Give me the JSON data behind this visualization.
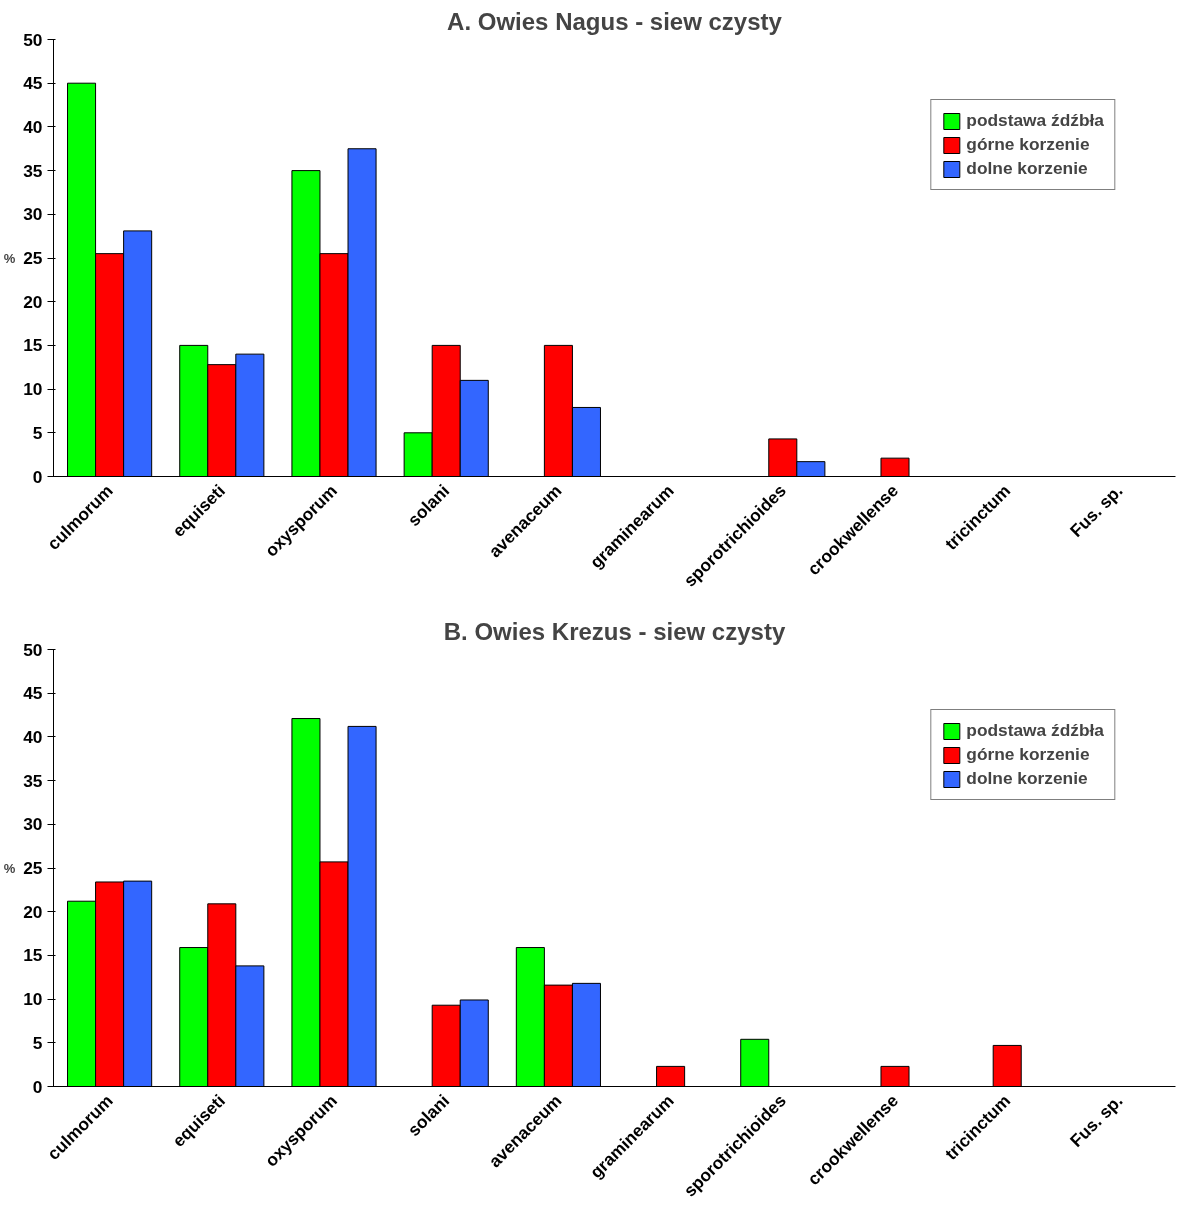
{
  "chart_data": [
    {
      "type": "bar",
      "title": "A. Owies Nagus - siew czysty",
      "ylabel": "%",
      "categories": [
        "culmorum",
        "equiseti",
        "oxysporum",
        "solani",
        "avenaceum",
        "graminearum",
        "sporotrichioides",
        "crookwellense",
        "tricinctum",
        "Fus. sp."
      ],
      "ylim": [
        0,
        50
      ],
      "yticks": [
        0,
        5,
        10,
        15,
        20,
        25,
        30,
        35,
        40,
        45,
        50
      ],
      "grid": false,
      "legend": "top right",
      "series": [
        {
          "name": "podstawa źdźbła",
          "color": "#00ff00",
          "values": [
            45,
            15,
            35,
            5,
            null,
            null,
            null,
            null,
            null,
            null
          ]
        },
        {
          "name": "górne korzenie",
          "color": "#ff0000",
          "values": [
            25.5,
            12.8,
            25.5,
            15,
            15,
            null,
            4.3,
            2.1,
            null,
            null
          ]
        },
        {
          "name": "dolne korzenie",
          "color": "#3366ff",
          "values": [
            28.1,
            14,
            37.5,
            11,
            7.9,
            null,
            1.7,
            null,
            null,
            null
          ]
        }
      ]
    },
    {
      "type": "bar",
      "title": "B. Owies Krezus - siew czysty",
      "ylabel": "%",
      "categories": [
        "culmorum",
        "equiseti",
        "oxysporum",
        "solani",
        "avenaceum",
        "graminearum",
        "sporotrichioides",
        "crookwellense",
        "tricinctum",
        "Fus. sp."
      ],
      "ylim": [
        0,
        50
      ],
      "yticks": [
        0,
        5,
        10,
        15,
        20,
        25,
        30,
        35,
        40,
        45,
        50
      ],
      "grid": false,
      "legend": "top right",
      "series": [
        {
          "name": "podstawa źdźbła",
          "color": "#00ff00",
          "values": [
            21.2,
            15.9,
            42.1,
            null,
            15.9,
            null,
            5.4,
            null,
            null,
            null
          ]
        },
        {
          "name": "górne korzenie",
          "color": "#ff0000",
          "values": [
            23.4,
            20.9,
            25.7,
            9.3,
            11.6,
            2.3,
            null,
            2.3,
            4.7,
            null
          ]
        },
        {
          "name": "dolne korzenie",
          "color": "#3366ff",
          "values": [
            23.5,
            13.8,
            41.2,
            9.9,
            11.8,
            null,
            null,
            null,
            null,
            null
          ]
        }
      ]
    }
  ]
}
